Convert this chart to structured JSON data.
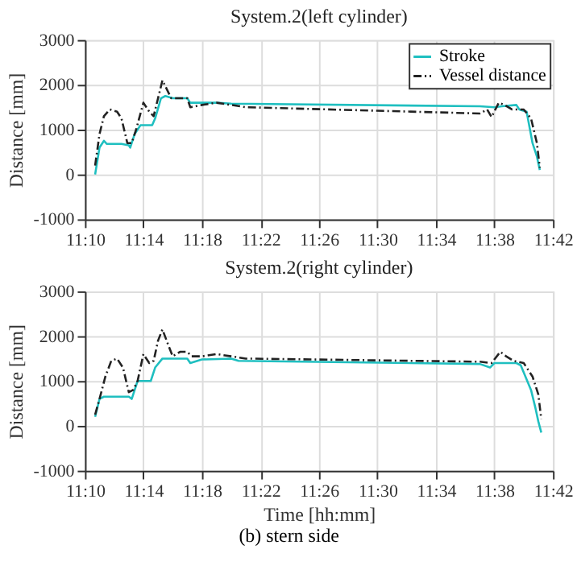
{
  "chart_data": [
    {
      "type": "line",
      "title": "System.2(left cylinder)",
      "ylabel": "Distance [mm]",
      "xlim": [
        11.1667,
        11.7
      ],
      "ylim": [
        -1000,
        3000
      ],
      "yticks": [
        -1000,
        0,
        1000,
        2000,
        3000
      ],
      "xticks": [
        {
          "value": 11.1667,
          "label": "11:10"
        },
        {
          "value": 11.2333,
          "label": "11:14"
        },
        {
          "value": 11.3,
          "label": "11:18"
        },
        {
          "value": 11.3667,
          "label": "11:22"
        },
        {
          "value": 11.4333,
          "label": "11:26"
        },
        {
          "value": 11.5,
          "label": "11:30"
        },
        {
          "value": 11.5667,
          "label": "11:34"
        },
        {
          "value": 11.6333,
          "label": "11:38"
        },
        {
          "value": 11.7,
          "label": "11:42"
        }
      ],
      "grid": true,
      "legend": "top right",
      "series": [
        {
          "name": "Stroke",
          "color": "#1fbfc0",
          "line_style": "solid",
          "x": [
            11.1783,
            11.1833,
            11.1883,
            11.1917,
            11.2083,
            11.2167,
            11.2183,
            11.2233,
            11.23,
            11.2433,
            11.2467,
            11.2533,
            11.2583,
            11.2667,
            11.2833,
            11.2867,
            11.3,
            11.3167,
            11.3333,
            11.6167,
            11.6333,
            11.6417,
            11.6583,
            11.6617,
            11.67,
            11.6767,
            11.6817,
            11.685
          ],
          "values": [
            0,
            600,
            750,
            680,
            680,
            650,
            600,
            900,
            1100,
            1100,
            1250,
            1700,
            1750,
            1700,
            1700,
            1600,
            1600,
            1600,
            1580,
            1520,
            1500,
            1520,
            1550,
            1450,
            1400,
            700,
            400,
            100
          ]
        },
        {
          "name": "Vessel distance",
          "color": "#222222",
          "line_style": "dashed",
          "x": [
            11.1783,
            11.1833,
            11.1883,
            11.195,
            11.2033,
            11.2083,
            11.215,
            11.22,
            11.225,
            11.2333,
            11.24,
            11.245,
            11.25,
            11.255,
            11.26,
            11.265,
            11.275,
            11.2833,
            11.2867,
            11.3,
            11.3167,
            11.3333,
            11.35,
            11.6167,
            11.625,
            11.63,
            11.6383,
            11.645,
            11.6533,
            11.6667,
            11.675,
            11.6817,
            11.685
          ],
          "values": [
            200,
            900,
            1300,
            1450,
            1400,
            1250,
            700,
            700,
            1000,
            1600,
            1400,
            1300,
            1700,
            2100,
            1900,
            1700,
            1700,
            1700,
            1500,
            1550,
            1600,
            1550,
            1500,
            1360,
            1450,
            1280,
            1600,
            1550,
            1450,
            1450,
            1250,
            700,
            150
          ]
        }
      ],
      "tick_labels": true
    },
    {
      "type": "line",
      "title": "System.2(right cylinder)",
      "xlabel": "Time [hh:mm]",
      "ylabel": "Distance [mm]",
      "xlim": [
        11.1667,
        11.7
      ],
      "ylim": [
        -1000,
        3000
      ],
      "yticks": [
        -1000,
        0,
        1000,
        2000,
        3000
      ],
      "xticks": [
        {
          "value": 11.1667,
          "label": "11:10"
        },
        {
          "value": 11.2333,
          "label": "11:14"
        },
        {
          "value": 11.3,
          "label": "11:18"
        },
        {
          "value": 11.3667,
          "label": "11:22"
        },
        {
          "value": 11.4333,
          "label": "11:26"
        },
        {
          "value": 11.5,
          "label": "11:30"
        },
        {
          "value": 11.5667,
          "label": "11:34"
        },
        {
          "value": 11.6333,
          "label": "11:38"
        },
        {
          "value": 11.7,
          "label": "11:42"
        }
      ],
      "grid": true,
      "legend": "top right",
      "annotations": [
        "(b)  stern side"
      ],
      "series": [
        {
          "name": "Stroke",
          "color": "#1fbfc0",
          "line_style": "solid",
          "x": [
            11.1783,
            11.1833,
            11.1883,
            11.2167,
            11.22,
            11.2267,
            11.2417,
            11.2467,
            11.255,
            11.2833,
            11.2867,
            11.3,
            11.3333,
            11.3417,
            11.6167,
            11.6283,
            11.6333,
            11.6583,
            11.6633,
            11.675,
            11.68,
            11.6833,
            11.6867
          ],
          "values": [
            200,
            600,
            650,
            650,
            600,
            1000,
            1000,
            1300,
            1500,
            1500,
            1400,
            1480,
            1500,
            1450,
            1380,
            1300,
            1400,
            1400,
            1350,
            800,
            400,
            100,
            -150
          ]
        },
        {
          "name": "Vessel distance",
          "color": "#222222",
          "line_style": "dashed",
          "x": [
            11.1783,
            11.1833,
            11.19,
            11.1967,
            11.2033,
            11.21,
            11.2167,
            11.2217,
            11.2267,
            11.2333,
            11.24,
            11.245,
            11.25,
            11.255,
            11.2617,
            11.2667,
            11.275,
            11.2833,
            11.2883,
            11.3,
            11.3167,
            11.3333,
            11.35,
            11.6167,
            11.63,
            11.64,
            11.6467,
            11.655,
            11.6667,
            11.6767,
            11.6833,
            11.6867
          ],
          "values": [
            250,
            600,
            1100,
            1450,
            1500,
            1300,
            750,
            800,
            1000,
            1600,
            1400,
            1450,
            1900,
            2150,
            1800,
            1550,
            1650,
            1650,
            1550,
            1550,
            1600,
            1550,
            1500,
            1430,
            1400,
            1650,
            1550,
            1450,
            1400,
            1100,
            700,
            150
          ]
        }
      ],
      "tick_labels": true
    }
  ]
}
